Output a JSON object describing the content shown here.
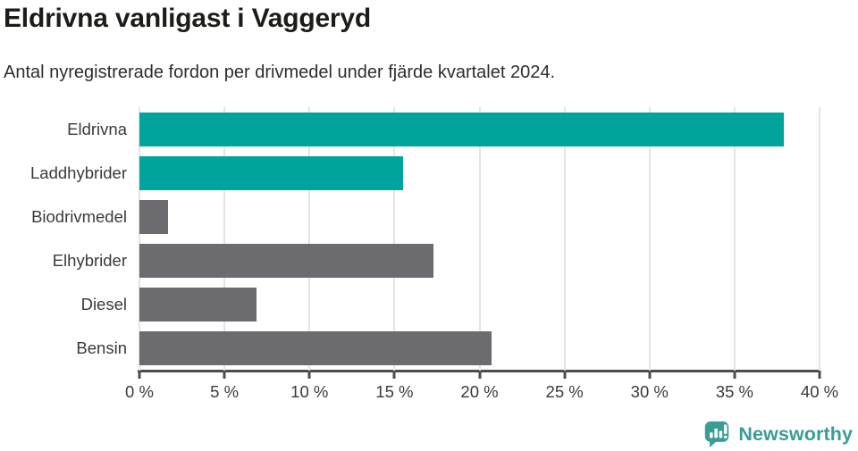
{
  "header": {
    "title": "Eldrivna vanligast i Vaggeryd",
    "subtitle": "Antal nyregistrerade fordon per drivmedel under fjärde kvartalet 2024."
  },
  "chart_data": {
    "type": "bar",
    "orientation": "horizontal",
    "title": "Eldrivna vanligast i Vaggeryd",
    "subtitle": "Antal nyregistrerade fordon per drivmedel under fjärde kvartalet 2024.",
    "categories": [
      "Eldrivna",
      "Laddhybrider",
      "Biodrivmedel",
      "Elhybrider",
      "Diesel",
      "Bensin"
    ],
    "values": [
      37.9,
      15.5,
      1.7,
      17.3,
      6.9,
      20.7
    ],
    "unit": "%",
    "xlim": [
      0,
      40
    ],
    "x_ticks": [
      0,
      5,
      10,
      15,
      20,
      25,
      30,
      35,
      40
    ],
    "x_tick_labels": [
      "0 %",
      "5 %",
      "10 %",
      "15 %",
      "20 %",
      "25 %",
      "30 %",
      "35 %",
      "40 %"
    ],
    "xlabel": "",
    "ylabel": "",
    "grid": true,
    "legend": "none",
    "bar_colors": [
      "#00a49c",
      "#00a49c",
      "#6b6b70",
      "#6b6b70",
      "#6b6b70",
      "#6b6b70"
    ],
    "colors": {
      "highlight_teal": "#00a49c",
      "neutral_gray": "#6b6b70",
      "gridline": "#e4e4e4",
      "axis": "#4c4c4e",
      "tick_text": "#3a3a3a"
    }
  },
  "branding": {
    "logo_text": "Newsworthy",
    "logo_color": "#399c96",
    "logo_icon": "newsworthy-speech-bubble-chart-icon"
  }
}
